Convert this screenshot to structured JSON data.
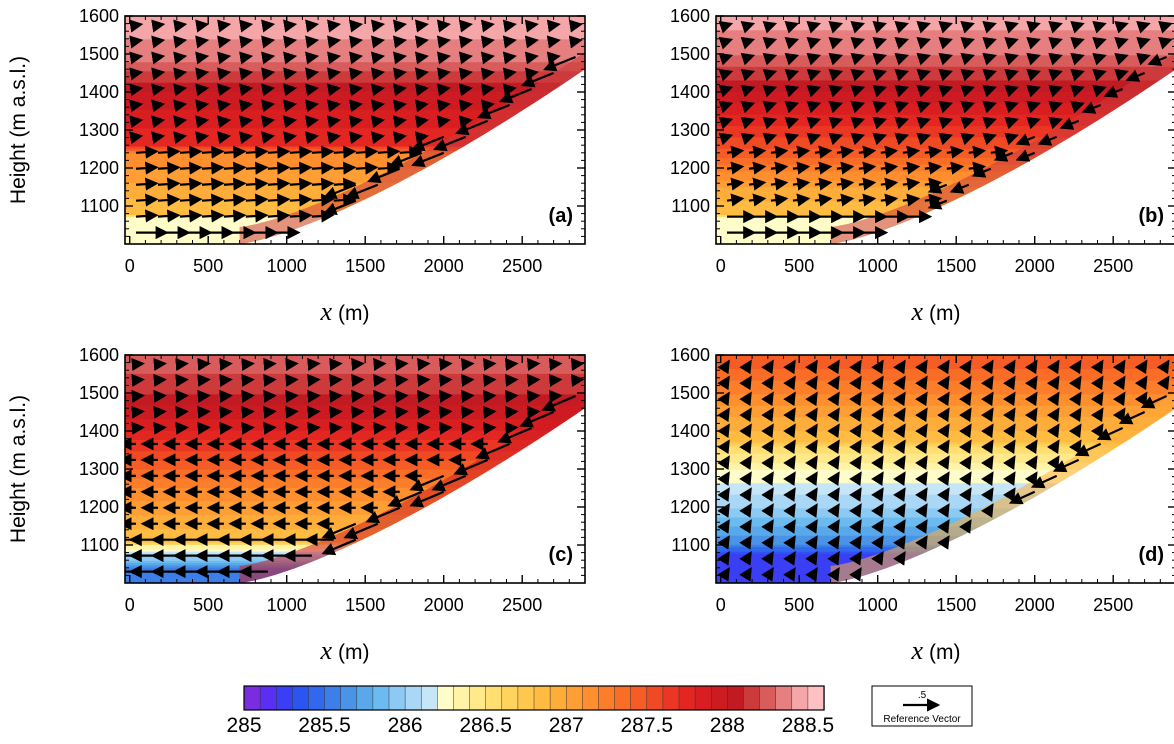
{
  "chart_data": {
    "type": "heatmap",
    "variable_units_note": "",
    "panels": [
      {
        "label": "(a)",
        "x_label_var": "x",
        "x_label_unit": "(m)",
        "y_label": "Height (m a.s.l.)",
        "xlim": [
          -30,
          2900
        ],
        "ylim": [
          1000,
          1600
        ],
        "x_ticks": [
          "0",
          "500",
          "1000",
          "1500",
          "2000",
          "2500"
        ],
        "y_ticks": [
          "1100",
          "1200",
          "1300",
          "1400",
          "1500",
          "1600"
        ],
        "profile": [
          [
            1,
            285.9
          ],
          [
            1070,
            286.3
          ],
          [
            1080,
            286.8
          ],
          [
            1240,
            287.2
          ],
          [
            1260,
            287.7
          ],
          [
            1400,
            288.0
          ],
          [
            1480,
            288.3
          ],
          [
            1600,
            288.5
          ]
        ],
        "pool_depth": 70,
        "pool_extent_x": 1300,
        "wind_regime": "upslope_and_pool_return"
      },
      {
        "label": "(b)",
        "x_label_var": "x",
        "x_label_unit": "(m)",
        "y_label": "",
        "xlim": [
          -30,
          2900
        ],
        "ylim": [
          1000,
          1600
        ],
        "x_ticks": [
          "0",
          "500",
          "1000",
          "1500",
          "2000",
          "2500"
        ],
        "y_ticks": [
          "1100",
          "1200",
          "1300",
          "1400",
          "1500",
          "1600"
        ],
        "profile": [
          [
            1,
            285.9
          ],
          [
            1070,
            286.3
          ],
          [
            1080,
            286.8
          ],
          [
            1150,
            287.0
          ],
          [
            1250,
            287.5
          ],
          [
            1400,
            288.0
          ],
          [
            1500,
            288.3
          ],
          [
            1600,
            288.45
          ]
        ],
        "pool_depth": 75,
        "pool_extent_x": 1400,
        "wind_regime": "weak_pool_return"
      },
      {
        "label": "(c)",
        "x_label_var": "x",
        "x_label_unit": "(m)",
        "y_label": "Height (m a.s.l.)",
        "xlim": [
          -30,
          2900
        ],
        "ylim": [
          1000,
          1600
        ],
        "x_ticks": [
          "0",
          "500",
          "1000",
          "1500",
          "2000",
          "2500"
        ],
        "y_ticks": [
          "1100",
          "1200",
          "1300",
          "1400",
          "1500",
          "1600"
        ],
        "profile": [
          [
            1,
            285.1
          ],
          [
            1040,
            285.6
          ],
          [
            1100,
            286.4
          ],
          [
            1110,
            286.8
          ],
          [
            1250,
            287.2
          ],
          [
            1400,
            287.8
          ],
          [
            1500,
            288.1
          ],
          [
            1600,
            288.3
          ]
        ],
        "pool_depth": 110,
        "pool_extent_x": 1350,
        "wind_regime": "downslope_and_return"
      },
      {
        "label": "(d)",
        "x_label_var": "x",
        "x_label_unit": "(m)",
        "y_label": "",
        "xlim": [
          -30,
          2900
        ],
        "ylim": [
          1000,
          1600
        ],
        "x_ticks": [
          "0",
          "500",
          "1000",
          "1500",
          "2000",
          "2500"
        ],
        "y_ticks": [
          "1100",
          "1200",
          "1300",
          "1400",
          "1500",
          "1600"
        ],
        "profile": [
          [
            1,
            285.1
          ],
          [
            1080,
            285.3
          ],
          [
            1100,
            285.6
          ],
          [
            1200,
            286.0
          ],
          [
            1300,
            286.3
          ],
          [
            1360,
            286.6
          ],
          [
            1370,
            286.8
          ],
          [
            1500,
            287.2
          ],
          [
            1600,
            287.5
          ]
        ],
        "pool_depth": 0,
        "pool_extent_x": 0,
        "wind_regime": "downslope_only"
      }
    ],
    "slope": {
      "x_start": 700,
      "y_start": 1000,
      "x_end": 2900,
      "y_end": 1460,
      "shape": "concave"
    },
    "colorbar": {
      "min": 285,
      "max": 288.6,
      "levels": 36,
      "labels": [
        "285",
        "285.5",
        "286",
        "286.5",
        "287",
        "287.5",
        "288",
        "288.5"
      ],
      "colors": [
        "#7a2de0",
        "#5a2ff2",
        "#3a3ff5",
        "#2a55f0",
        "#3268ee",
        "#3d7ee9",
        "#4a94e8",
        "#58a8ea",
        "#6cbbf0",
        "#8ccaf3",
        "#a9d7f5",
        "#c6e5f7",
        "#fefcc8",
        "#fff3a8",
        "#ffe98a",
        "#ffdf72",
        "#ffd45e",
        "#ffc84e",
        "#ffbb42",
        "#ffad3a",
        "#ff9e34",
        "#ff8f2e",
        "#fc7e2a",
        "#f96d27",
        "#f55c26",
        "#f04a24",
        "#ea3623",
        "#e32622",
        "#d91e21",
        "#cd1b22",
        "#c21a22",
        "#cc3a3c",
        "#d95c5c",
        "#e67f80",
        "#f4a6a8",
        "#fdc1c3"
      ]
    },
    "reference_vector": {
      "value": ".5",
      "label": "Reference Vector"
    }
  }
}
